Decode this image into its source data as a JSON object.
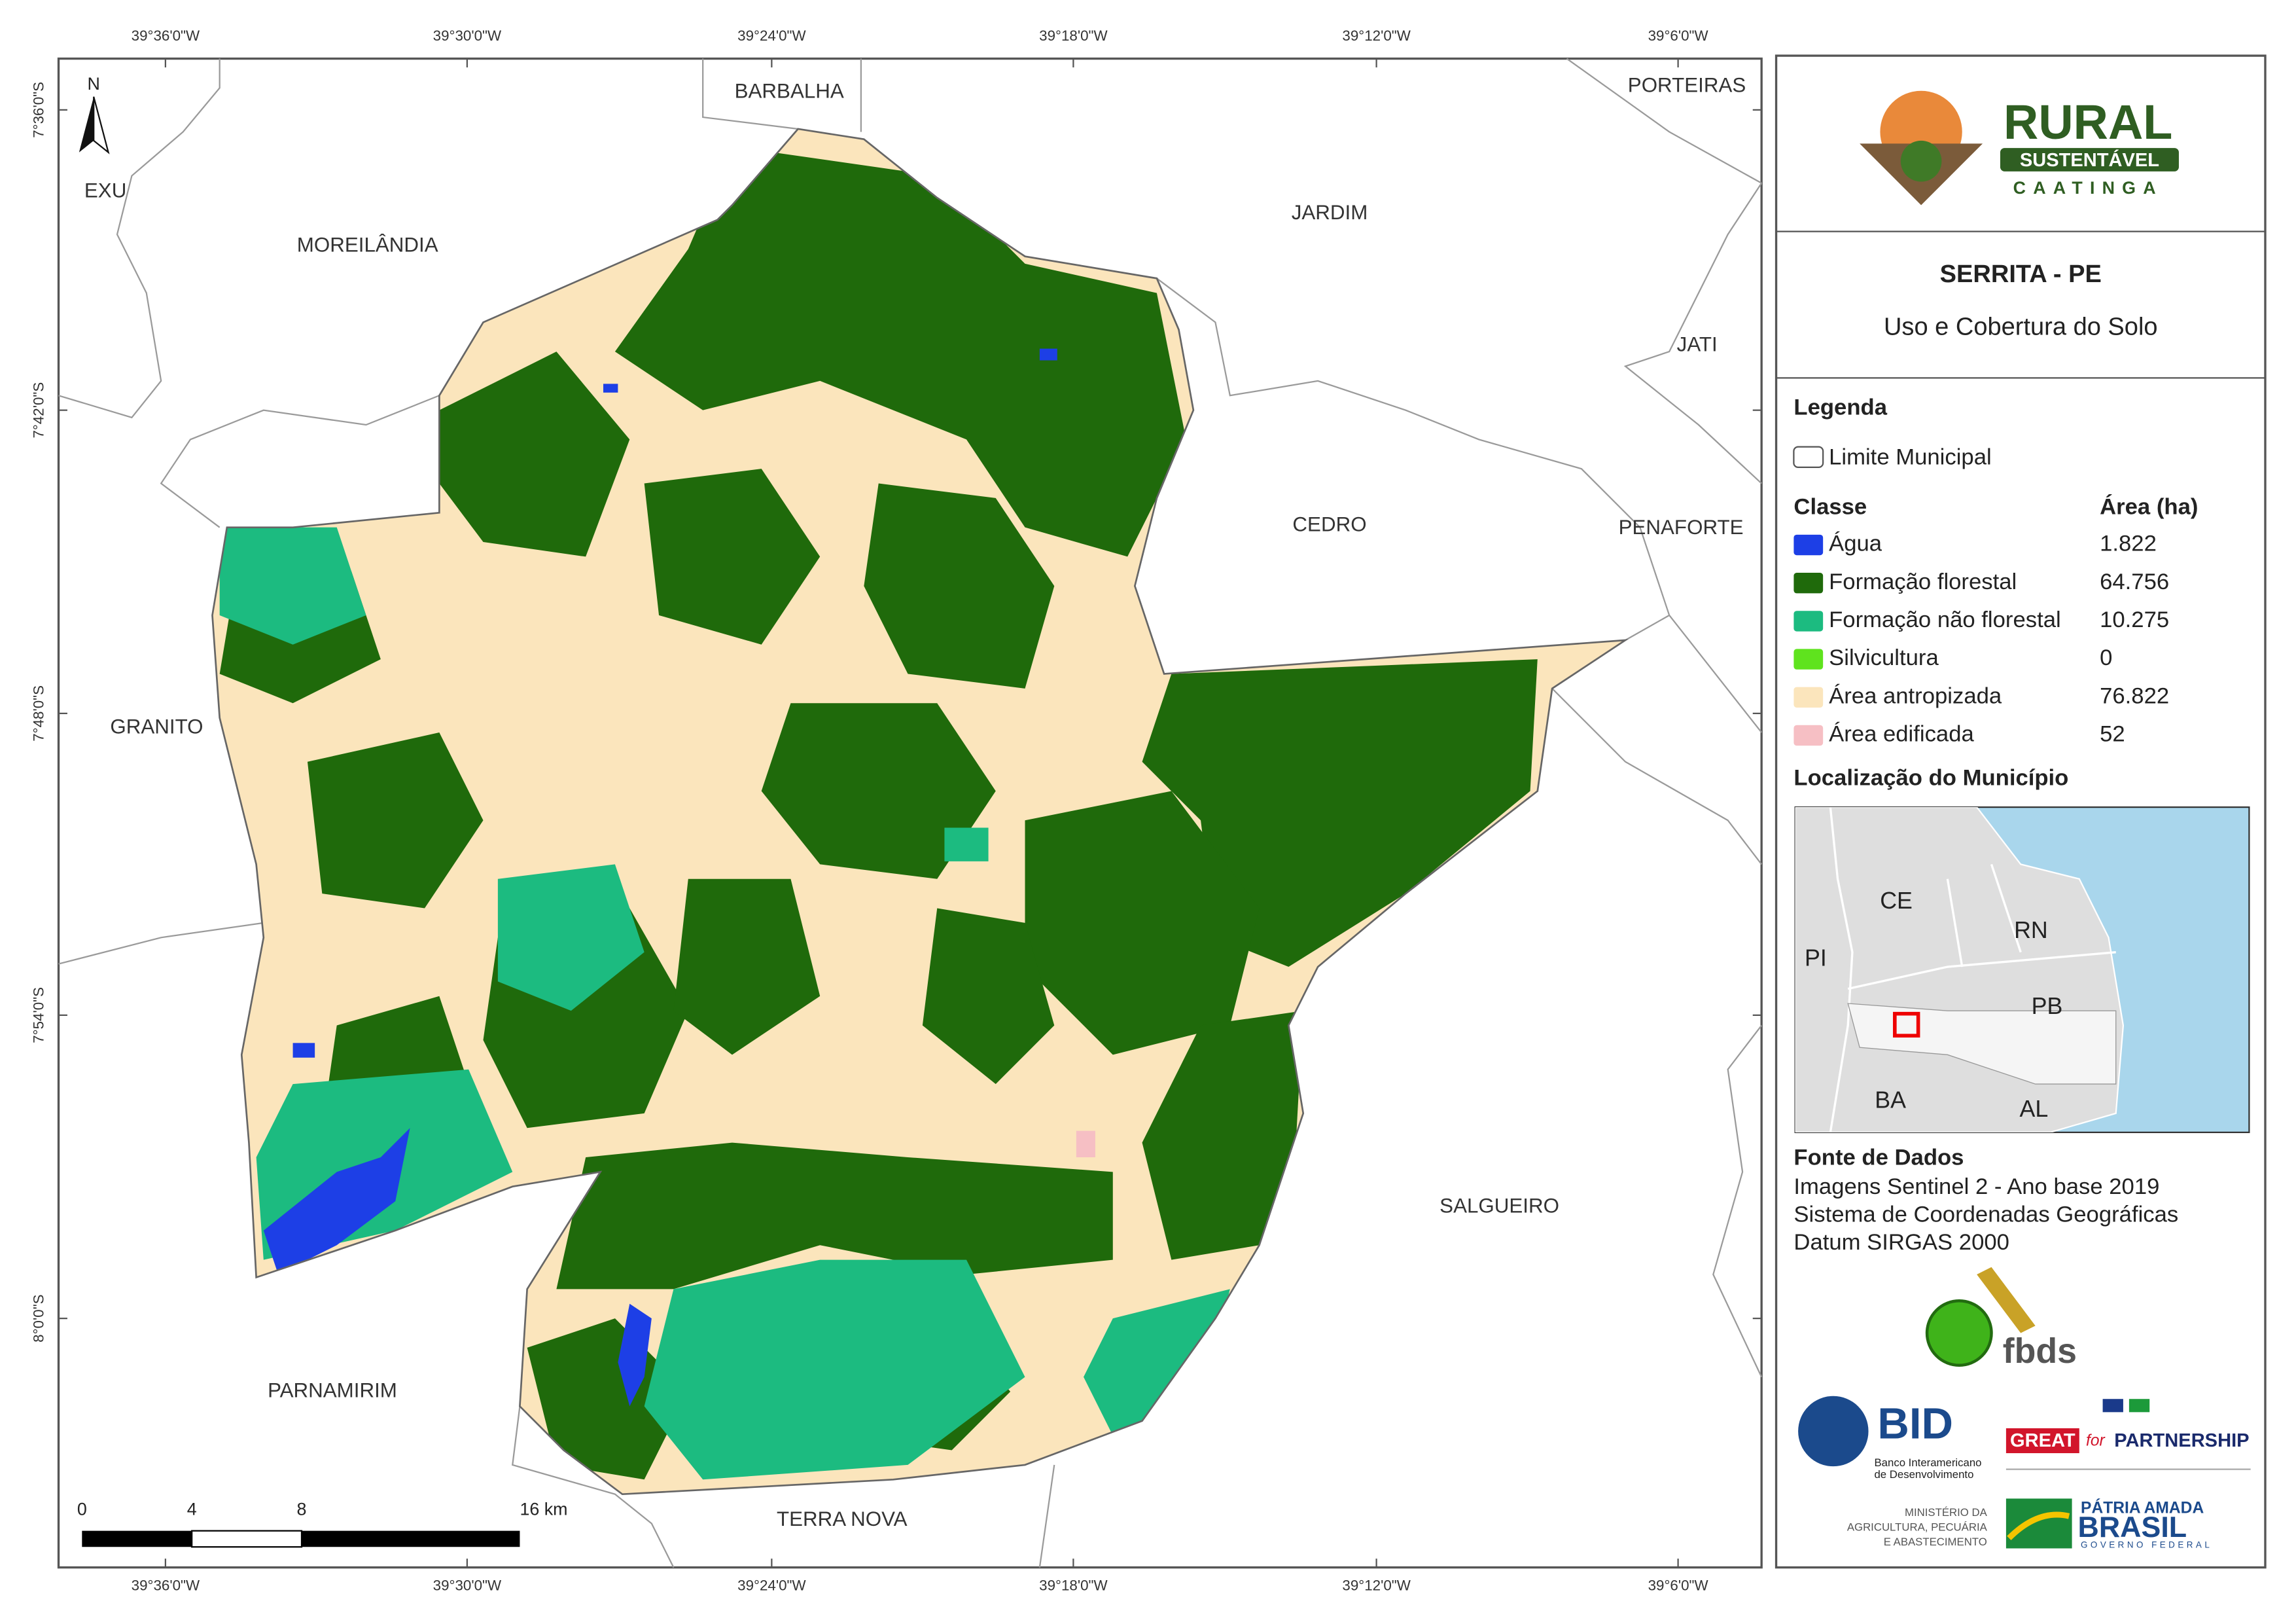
{
  "map": {
    "longitudes": [
      "39°36'0\"W",
      "39°30'0\"W",
      "39°24'0\"W",
      "39°18'0\"W",
      "39°12'0\"W",
      "39°6'0\"W"
    ],
    "latitudes": [
      "7°36'0\"S",
      "7°42'0\"S",
      "7°48'0\"S",
      "7°54'0\"S",
      "8°0'0\"S"
    ],
    "municipalities": [
      "EXU",
      "MOREILÂNDIA",
      "BARBALHA",
      "JARDIM",
      "PORTEIRAS",
      "JATI",
      "CEDRO",
      "PENAFORTE",
      "GRANITO",
      "SALGUEIRO",
      "PARNAMIRIM",
      "TERRA NOVA"
    ],
    "north": "N",
    "scale_bar": [
      "0",
      "4",
      "8",
      "16 km"
    ]
  },
  "panel": {
    "logo": {
      "line1": "RURAL",
      "line2": "SUSTENTÁVEL",
      "line3": "CAATINGA"
    },
    "title": "SERRITA - PE",
    "subtitle": "Uso e Cobertura do Solo",
    "legend": {
      "heading": "Legenda",
      "boundary": "Limite Municipal",
      "class_header": "Classe",
      "area_header": "Área (ha)",
      "classes": [
        {
          "name": "Água",
          "color": "#1d3fe6",
          "area": "1.822"
        },
        {
          "name": "Formação florestal",
          "color": "#1f6a0b",
          "area": "64.756"
        },
        {
          "name": "Formação não florestal",
          "color": "#1cbb80",
          "area": "10.275"
        },
        {
          "name": "Silvicultura",
          "color": "#5fe31e",
          "area": "0"
        },
        {
          "name": "Área antropizada",
          "color": "#fbe5bc",
          "area": "76.822"
        },
        {
          "name": "Área edificada",
          "color": "#f6bfc4",
          "area": "52"
        }
      ]
    },
    "location": {
      "heading": "Localização do Município",
      "states": [
        "CE",
        "RN",
        "PI",
        "PB",
        "BA",
        "AL"
      ]
    },
    "sources": {
      "heading": "Fonte de Dados",
      "lines": [
        "Imagens Sentinel 2 - Ano base 2019",
        "Sistema de Coordenadas Geográficas",
        "Datum SIRGAS 2000"
      ]
    },
    "partners": {
      "fbds": "fbds",
      "bid": "BID",
      "bid_name": [
        "Banco Interamericano",
        "de Desenvolvimento"
      ],
      "great": "GREAT",
      "great_for": "for",
      "partnership": "PARTNERSHIP",
      "ministry": [
        "MINISTÉRIO DA",
        "AGRICULTURA, PECUÁRIA",
        "E ABASTECIMENTO"
      ],
      "patria": "PÁTRIA AMADA",
      "brasil": "BRASIL",
      "governo": "GOVERNO FEDERAL"
    }
  }
}
